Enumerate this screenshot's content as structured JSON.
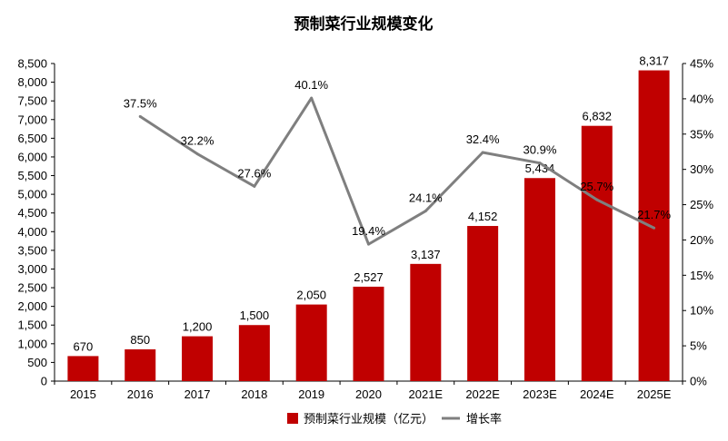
{
  "chart_data": {
    "type": "bar",
    "title": "预制菜行业规模变化",
    "categories": [
      "2015",
      "2016",
      "2017",
      "2018",
      "2019",
      "2020",
      "2021E",
      "2022E",
      "2023E",
      "2024E",
      "2025E"
    ],
    "series": [
      {
        "name": "预制菜行业规模（亿元）",
        "type": "bar",
        "axis": "left",
        "color": "#C00000",
        "values": [
          670,
          850,
          1200,
          1500,
          2050,
          2527,
          3137,
          4152,
          5434,
          6832,
          8317
        ],
        "labels": [
          "670",
          "850",
          "1,200",
          "1,500",
          "2,050",
          "2,527",
          "3,137",
          "4,152",
          "5,434",
          "6,832",
          "8,317"
        ]
      },
      {
        "name": "增长率",
        "type": "line",
        "axis": "right",
        "color": "#7F7F7F",
        "values": [
          null,
          37.5,
          32.2,
          27.6,
          40.1,
          19.4,
          24.1,
          32.4,
          30.9,
          25.7,
          21.7
        ],
        "labels": [
          "",
          "37.5%",
          "32.2%",
          "27.6%",
          "40.1%",
          "19.4%",
          "24.1%",
          "32.4%",
          "30.9%",
          "25.7%",
          "21.7%"
        ]
      }
    ],
    "y_left": {
      "min": 0,
      "max": 8500,
      "step": 500,
      "tick_labels": [
        "0",
        "500",
        "1,000",
        "1,500",
        "2,000",
        "2,500",
        "3,000",
        "3,500",
        "4,000",
        "4,500",
        "5,000",
        "5,500",
        "6,000",
        "6,500",
        "7,000",
        "7,500",
        "8,000",
        "8,500"
      ]
    },
    "y_right": {
      "min": 0,
      "max": 45,
      "step": 5,
      "tick_labels": [
        "0%",
        "5%",
        "10%",
        "15%",
        "20%",
        "25%",
        "30%",
        "35%",
        "40%",
        "45%"
      ]
    },
    "grid": false,
    "legend": "bottom-center"
  }
}
